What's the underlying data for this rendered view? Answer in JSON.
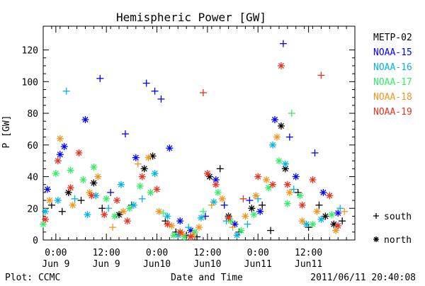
{
  "chart_data": {
    "type": "scatter",
    "title": "Hemispheric Power [GW]",
    "ylabel": "P [GW]",
    "xlabel": "Date and Time",
    "ylim": [
      0,
      135
    ],
    "xlim": [
      "2011-06-08 21:00",
      "2011-06-11 23:00"
    ],
    "yticks": [
      0,
      20,
      40,
      60,
      80,
      100,
      120
    ],
    "xticks": [
      {
        "time": "2011-06-09 00:00",
        "line1": "0:00",
        "line2": "Jun 9"
      },
      {
        "time": "2011-06-09 12:00",
        "line1": "12:00",
        "line2": "Jun 9"
      },
      {
        "time": "2011-06-10 00:00",
        "line1": "0:00",
        "line2": "Jun10"
      },
      {
        "time": "2011-06-10 12:00",
        "line1": "12:00",
        "line2": "Jun10"
      },
      {
        "time": "2011-06-11 00:00",
        "line1": "0:00",
        "line2": "Jun11"
      },
      {
        "time": "2011-06-11 12:00",
        "line1": "12:00",
        "line2": "Jun11"
      }
    ],
    "grid": false,
    "legend_position": "right",
    "series": [
      {
        "name": "METP-02",
        "color": "#000000",
        "points": [
          [
            "2011-06-08 23:00",
            22,
            "south"
          ],
          [
            "2011-06-09 01:30",
            18,
            "south"
          ],
          [
            "2011-06-09 03:00",
            30,
            "north"
          ],
          [
            "2011-06-09 06:00",
            25,
            "south"
          ],
          [
            "2011-06-09 09:00",
            36,
            "north"
          ],
          [
            "2011-06-09 11:00",
            20,
            "south"
          ],
          [
            "2011-06-09 15:00",
            16,
            "north"
          ],
          [
            "2011-06-09 18:00",
            22,
            "south"
          ],
          [
            "2011-06-09 21:00",
            45,
            "north"
          ],
          [
            "2011-06-09 23:00",
            53,
            "north"
          ],
          [
            "2011-06-10 02:00",
            12,
            "south"
          ],
          [
            "2011-06-10 04:30",
            5,
            "south"
          ],
          [
            "2011-06-10 07:00",
            3,
            "south"
          ],
          [
            "2011-06-10 09:30",
            2,
            "south"
          ],
          [
            "2011-06-10 12:30",
            40,
            "north"
          ],
          [
            "2011-06-10 15:00",
            45,
            "south"
          ],
          [
            "2011-06-10 17:00",
            15,
            "north"
          ],
          [
            "2011-06-10 19:30",
            5,
            "south"
          ],
          [
            "2011-06-10 22:30",
            20,
            "north"
          ],
          [
            "2011-06-11 01:00",
            22,
            "south"
          ],
          [
            "2011-06-11 03:00",
            6,
            "south"
          ],
          [
            "2011-06-11 05:30",
            72,
            "north"
          ],
          [
            "2011-06-11 06:30",
            45,
            "north"
          ],
          [
            "2011-06-11 09:30",
            30,
            "south"
          ],
          [
            "2011-06-11 12:00",
            8,
            "south"
          ],
          [
            "2011-06-11 14:30",
            22,
            "south"
          ],
          [
            "2011-06-11 16:00",
            15,
            "north"
          ],
          [
            "2011-06-11 18:00",
            10,
            "north"
          ],
          [
            "2011-06-11 20:00",
            12,
            "south"
          ]
        ]
      },
      {
        "name": "NOAA-15",
        "color": "#0000ff",
        "points": [
          [
            "2011-06-08 22:00",
            32,
            "north"
          ],
          [
            "2011-06-09 01:00",
            54,
            "north"
          ],
          [
            "2011-06-09 02:00",
            59,
            "north"
          ],
          [
            "2011-06-09 07:00",
            76,
            "north"
          ],
          [
            "2011-06-09 10:30",
            102,
            "south"
          ],
          [
            "2011-06-09 13:00",
            30,
            "south"
          ],
          [
            "2011-06-09 16:30",
            67,
            "south"
          ],
          [
            "2011-06-09 19:00",
            52,
            "north"
          ],
          [
            "2011-06-09 21:30",
            99,
            "south"
          ],
          [
            "2011-06-09 23:30",
            94,
            "south"
          ],
          [
            "2011-06-10 01:00",
            89,
            "south"
          ],
          [
            "2011-06-10 03:00",
            58,
            "north"
          ],
          [
            "2011-06-10 05:30",
            12,
            "north"
          ],
          [
            "2011-06-10 08:00",
            6,
            "north"
          ],
          [
            "2011-06-10 11:30",
            15,
            "south"
          ],
          [
            "2011-06-10 14:00",
            38,
            "north"
          ],
          [
            "2011-06-10 16:00",
            22,
            "south"
          ],
          [
            "2011-06-10 18:30",
            10,
            "north"
          ],
          [
            "2011-06-10 22:00",
            25,
            "south"
          ],
          [
            "2011-06-11 00:30",
            18,
            "north"
          ],
          [
            "2011-06-11 04:00",
            76,
            "north"
          ],
          [
            "2011-06-11 06:00",
            124,
            "south"
          ],
          [
            "2011-06-11 07:30",
            65,
            "south"
          ],
          [
            "2011-06-11 09:00",
            40,
            "north"
          ],
          [
            "2011-06-11 13:30",
            55,
            "south"
          ],
          [
            "2011-06-11 15:30",
            30,
            "north"
          ],
          [
            "2011-06-11 19:00",
            17,
            "north"
          ]
        ]
      },
      {
        "name": "NOAA-16",
        "color": "#00b4e6",
        "points": [
          [
            "2011-06-08 21:30",
            18,
            "north"
          ],
          [
            "2011-06-09 00:30",
            25,
            "north"
          ],
          [
            "2011-06-09 02:30",
            94,
            "south"
          ],
          [
            "2011-06-09 04:30",
            26,
            "south"
          ],
          [
            "2011-06-09 07:30",
            16,
            "north"
          ],
          [
            "2011-06-09 09:30",
            28,
            "north"
          ],
          [
            "2011-06-09 12:30",
            20,
            "south"
          ],
          [
            "2011-06-09 15:30",
            35,
            "north"
          ],
          [
            "2011-06-09 18:30",
            22,
            "north"
          ],
          [
            "2011-06-09 20:30",
            26,
            "south"
          ],
          [
            "2011-06-09 23:30",
            42,
            "north"
          ],
          [
            "2011-06-10 02:30",
            15,
            "north"
          ],
          [
            "2011-06-10 05:00",
            3,
            "north"
          ],
          [
            "2011-06-10 07:30",
            8,
            "south"
          ],
          [
            "2011-06-10 10:30",
            14,
            "north"
          ],
          [
            "2011-06-10 13:30",
            24,
            "north"
          ],
          [
            "2011-06-10 16:30",
            12,
            "south"
          ],
          [
            "2011-06-10 19:00",
            3,
            "north"
          ],
          [
            "2011-06-10 21:30",
            10,
            "south"
          ],
          [
            "2011-06-11 00:00",
            26,
            "south"
          ],
          [
            "2011-06-11 03:30",
            60,
            "north"
          ],
          [
            "2011-06-11 06:30",
            48,
            "north"
          ],
          [
            "2011-06-11 08:30",
            32,
            "south"
          ],
          [
            "2011-06-11 11:30",
            10,
            "north"
          ],
          [
            "2011-06-11 15:00",
            13,
            "north"
          ],
          [
            "2011-06-11 19:30",
            20,
            "south"
          ]
        ]
      },
      {
        "name": "NOAA-17",
        "color": "#33ee66",
        "points": [
          [
            "2011-06-08 21:00",
            10,
            "north"
          ],
          [
            "2011-06-09 00:00",
            42,
            "north"
          ],
          [
            "2011-06-09 03:30",
            44,
            "north"
          ],
          [
            "2011-06-09 06:30",
            38,
            "north"
          ],
          [
            "2011-06-09 09:00",
            46,
            "north"
          ],
          [
            "2011-06-09 12:00",
            26,
            "north"
          ],
          [
            "2011-06-09 14:00",
            15,
            "north"
          ],
          [
            "2011-06-09 17:30",
            20,
            "north"
          ],
          [
            "2011-06-09 20:00",
            34,
            "north"
          ],
          [
            "2011-06-09 22:30",
            30,
            "north"
          ],
          [
            "2011-06-10 01:30",
            17,
            "south"
          ],
          [
            "2011-06-10 04:00",
            3,
            "north"
          ],
          [
            "2011-06-10 06:30",
            2,
            "north"
          ],
          [
            "2011-06-10 09:00",
            5,
            "north"
          ],
          [
            "2011-06-10 11:00",
            18,
            "south"
          ],
          [
            "2011-06-10 14:30",
            30,
            "north"
          ],
          [
            "2011-06-10 17:30",
            12,
            "north"
          ],
          [
            "2011-06-10 20:00",
            6,
            "north"
          ],
          [
            "2011-06-10 23:00",
            16,
            "north"
          ],
          [
            "2011-06-11 02:30",
            33,
            "north"
          ],
          [
            "2011-06-11 05:00",
            50,
            "north"
          ],
          [
            "2011-06-11 07:00",
            23,
            "north"
          ],
          [
            "2011-06-11 08:00",
            80,
            "south"
          ],
          [
            "2011-06-11 10:00",
            28,
            "north"
          ],
          [
            "2011-06-11 13:00",
            10,
            "north"
          ],
          [
            "2011-06-11 17:30",
            16,
            "north"
          ]
        ]
      },
      {
        "name": "NOAA-18",
        "color": "#f0961e",
        "points": [
          [
            "2011-06-08 22:30",
            25,
            "north"
          ],
          [
            "2011-06-09 01:00",
            64,
            "north"
          ],
          [
            "2011-06-09 04:00",
            22,
            "north"
          ],
          [
            "2011-06-09 08:00",
            30,
            "north"
          ],
          [
            "2011-06-09 10:00",
            40,
            "north"
          ],
          [
            "2011-06-09 13:30",
            8,
            "south"
          ],
          [
            "2011-06-09 16:00",
            18,
            "north"
          ],
          [
            "2011-06-09 19:30",
            48,
            "south"
          ],
          [
            "2011-06-09 22:00",
            52,
            "north"
          ],
          [
            "2011-06-10 00:30",
            18,
            "north"
          ],
          [
            "2011-06-10 03:30",
            9,
            "north"
          ],
          [
            "2011-06-10 06:00",
            4,
            "north"
          ],
          [
            "2011-06-10 08:30",
            3,
            "north"
          ],
          [
            "2011-06-10 10:00",
            8,
            "north"
          ],
          [
            "2011-06-10 13:00",
            22,
            "south"
          ],
          [
            "2011-06-10 15:30",
            26,
            "north"
          ],
          [
            "2011-06-10 18:00",
            8,
            "south"
          ],
          [
            "2011-06-10 21:00",
            15,
            "north"
          ],
          [
            "2011-06-10 23:30",
            28,
            "north"
          ],
          [
            "2011-06-11 02:00",
            38,
            "north"
          ],
          [
            "2011-06-11 04:30",
            65,
            "north"
          ],
          [
            "2011-06-11 07:30",
            30,
            "north"
          ],
          [
            "2011-06-11 10:30",
            12,
            "north"
          ],
          [
            "2011-06-11 14:00",
            18,
            "north"
          ],
          [
            "2011-06-11 18:30",
            6,
            "north"
          ],
          [
            "2011-06-11 20:30",
            18,
            "south"
          ]
        ]
      },
      {
        "name": "NOAA-19",
        "color": "#e6321e",
        "points": [
          [
            "2011-06-08 21:30",
            13,
            "north"
          ],
          [
            "2011-06-09 00:30",
            50,
            "north"
          ],
          [
            "2011-06-09 03:30",
            33,
            "north"
          ],
          [
            "2011-06-09 05:30",
            55,
            "north"
          ],
          [
            "2011-06-09 08:30",
            28,
            "north"
          ],
          [
            "2011-06-09 11:30",
            16,
            "north"
          ],
          [
            "2011-06-09 14:30",
            25,
            "north"
          ],
          [
            "2011-06-09 17:00",
            12,
            "north"
          ],
          [
            "2011-06-09 20:30",
            40,
            "north"
          ],
          [
            "2011-06-10 00:00",
            32,
            "north"
          ],
          [
            "2011-06-10 02:30",
            10,
            "north"
          ],
          [
            "2011-06-10 05:30",
            5,
            "north"
          ],
          [
            "2011-06-10 08:00",
            2,
            "north"
          ],
          [
            "2011-06-10 11:00",
            93,
            "south"
          ],
          [
            "2011-06-10 12:00",
            42,
            "north"
          ],
          [
            "2011-06-10 14:00",
            35,
            "north"
          ],
          [
            "2011-06-10 17:00",
            14,
            "north"
          ],
          [
            "2011-06-10 20:30",
            26,
            "south"
          ],
          [
            "2011-06-11 00:00",
            40,
            "north"
          ],
          [
            "2011-06-11 03:30",
            35,
            "north"
          ],
          [
            "2011-06-11 05:30",
            110,
            "north"
          ],
          [
            "2011-06-11 07:00",
            35,
            "north"
          ],
          [
            "2011-06-11 10:30",
            22,
            "north"
          ],
          [
            "2011-06-11 13:00",
            38,
            "north"
          ],
          [
            "2011-06-11 15:00",
            104,
            "south"
          ],
          [
            "2011-06-11 17:00",
            28,
            "north"
          ],
          [
            "2011-06-11 19:00",
            9,
            "north"
          ]
        ]
      }
    ],
    "marker_legend": [
      {
        "symbol": "+",
        "label": "south"
      },
      {
        "symbol": "*",
        "label": "north"
      }
    ]
  },
  "footer": {
    "left": "Plot: CCMC",
    "right": "2011/06/11 20:40:08"
  }
}
